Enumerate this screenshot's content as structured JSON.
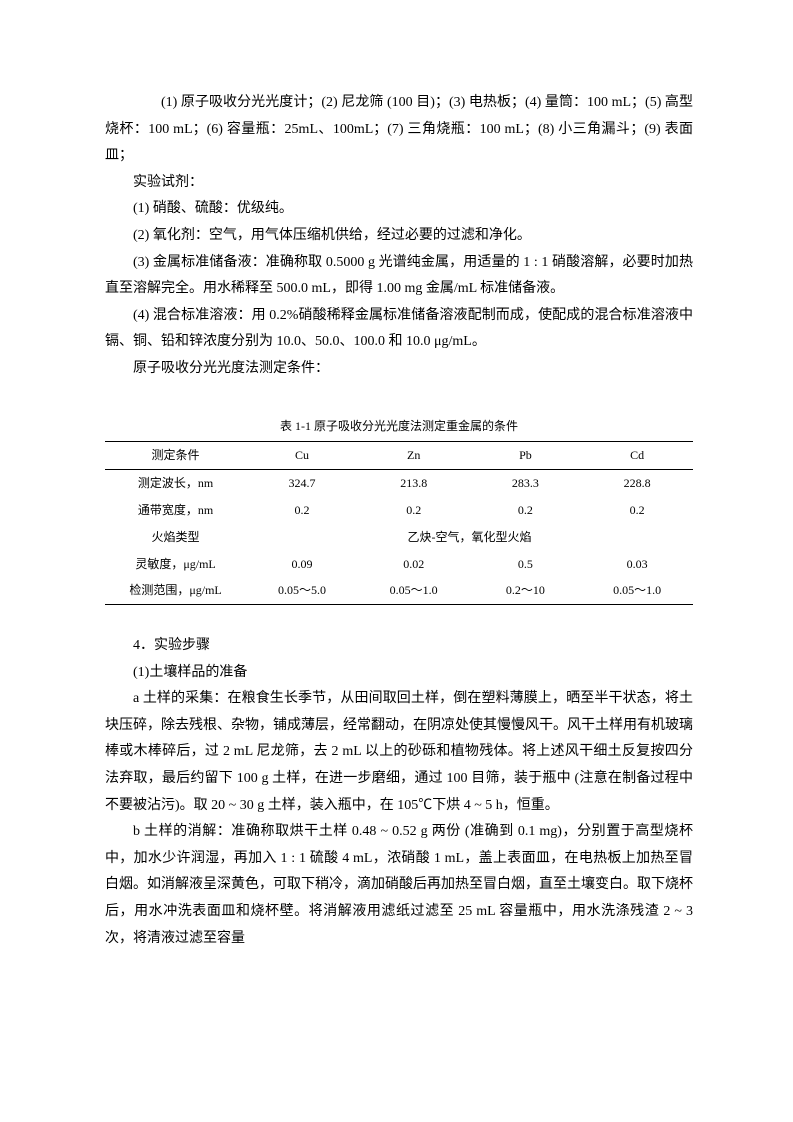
{
  "para": {
    "equip": "(1) 原子吸收分光光度计；(2) 尼龙筛 (100 目)；(3) 电热板；(4) 量筒：100 mL；(5) 高型烧杯：100 mL；(6) 容量瓶：25mL、100mL；(7) 三角烧瓶：100 mL；(8) 小三角漏斗；(9) 表面皿；",
    "reagent_title": "实验试剂：",
    "r1": "(1) 硝酸、硫酸：优级纯。",
    "r2": "(2) 氧化剂：空气，用气体压缩机供给，经过必要的过滤和净化。",
    "r3": "(3) 金属标准储备液：准确称取 0.5000 g 光谱纯金属，用适量的 1 : 1 硝酸溶解，必要时加热直至溶解完全。用水稀释至 500.0 mL，即得 1.00 mg 金属/mL 标准储备液。",
    "r4": "(4) 混合标准溶液：用 0.2%硝酸稀释金属标准储备溶液配制而成，使配成的混合标准溶液中镉、铜、铅和锌浓度分别为 10.0、50.0、100.0 和 10.0  μg/mL。",
    "cond": "原子吸收分光光度法测定条件："
  },
  "table": {
    "caption": "表 1-1  原子吸收分光光度法测定重金属的条件",
    "header": [
      "测定条件",
      "Cu",
      "Zn",
      "Pb",
      "Cd"
    ],
    "rows": [
      {
        "label": "测定波长，nm",
        "v": [
          "324.7",
          "213.8",
          "283.3",
          "228.8"
        ]
      },
      {
        "label": "通带宽度，nm",
        "v": [
          "0.2",
          "0.2",
          "0.2",
          "0.2"
        ]
      },
      {
        "label": "火焰类型",
        "span": "乙炔-空气，氧化型火焰"
      },
      {
        "label": "灵敏度，μg/mL",
        "v": [
          "0.09",
          "0.02",
          "0.5",
          "0.03"
        ]
      },
      {
        "label": "检测范围，μg/mL",
        "v": [
          "0.05～5.0",
          "0.05～1.0",
          "0.2～10",
          "0.05～1.0"
        ]
      }
    ]
  },
  "steps": {
    "title": "4．实验步骤",
    "s1_title": "(1)土壤样品的准备",
    "a": "a 土样的采集：在粮食生长季节，从田间取回土样，倒在塑料薄膜上，晒至半干状态，将土块压碎，除去残根、杂物，铺成薄层，经常翻动，在阴凉处使其慢慢风干。风干土样用有机玻璃棒或木棒碎后，过 2 mL 尼龙筛，去 2 mL 以上的砂砾和植物残体。将上述风干细土反复按四分法弃取，最后约留下 100 g 土样，在进一步磨细，通过 100 目筛，装于瓶中 (注意在制备过程中不要被沾污)。取 20 ~ 30 g 土样，装入瓶中，在 105℃下烘 4 ~ 5 h，恒重。",
    "b": "b 土样的消解：准确称取烘干土样 0.48 ~ 0.52 g 两份 (准确到 0.1 mg)，分别置于高型烧杯中，加水少许润湿，再加入 1 : 1 硫酸 4 mL，浓硝酸 1 mL，盖上表面皿，在电热板上加热至冒白烟。如消解液呈深黄色，可取下稍冷，滴加硝酸后再加热至冒白烟，直至土壤变白。取下烧杯后，用水冲洗表面皿和烧杯壁。将消解液用滤纸过滤至 25 mL 容量瓶中，用水洗涤残渣 2 ~ 3 次，将清液过滤至容量"
  }
}
